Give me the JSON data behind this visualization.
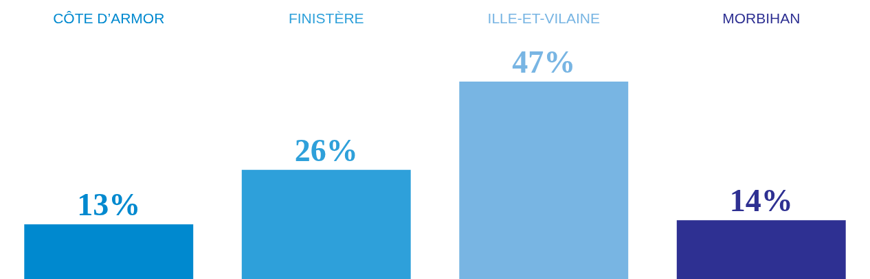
{
  "chart_data": {
    "type": "bar",
    "categories": [
      "CÔTE D’ARMOR",
      "FINISTÈRE",
      "ILLE-ET-VILAINE",
      "MORBIHAN"
    ],
    "values": [
      13,
      26,
      47,
      14
    ],
    "colors": [
      "#0089cf",
      "#2ea0da",
      "#78b5e3",
      "#2e3092"
    ],
    "value_labels": [
      "13%",
      "26%",
      "47%",
      "14%"
    ],
    "tick_labels": "x"
  }
}
